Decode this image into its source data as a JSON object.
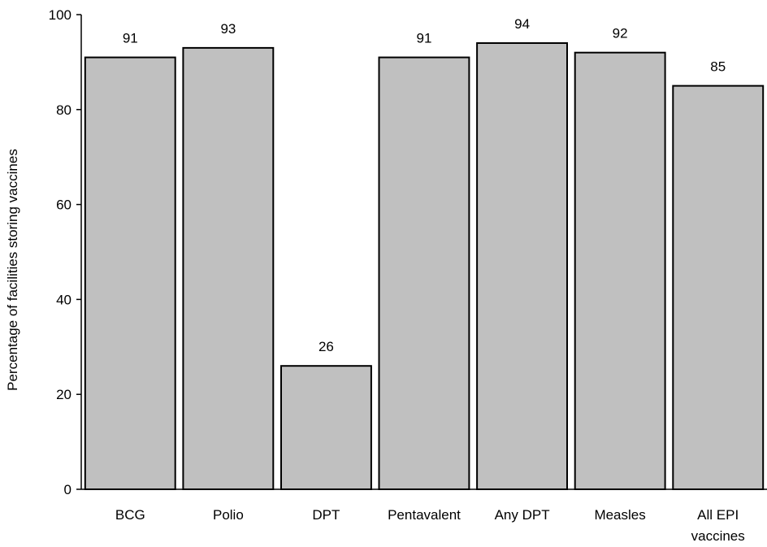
{
  "chart_data": {
    "type": "bar",
    "categories": [
      "BCG",
      "Polio",
      "DPT",
      "Pentavalent",
      "Any DPT",
      "Measles",
      "All EPI vaccines"
    ],
    "category_label_lines": [
      [
        "BCG"
      ],
      [
        "Polio"
      ],
      [
        "DPT"
      ],
      [
        "Pentavalent"
      ],
      [
        "Any DPT"
      ],
      [
        "Measles"
      ],
      [
        "All EPI",
        "vaccines"
      ]
    ],
    "values": [
      91,
      93,
      26,
      91,
      94,
      92,
      85
    ],
    "data_labels": [
      "91",
      "93",
      "26",
      "91",
      "94",
      "92",
      "85"
    ],
    "ylabel": "Percentage of facilities storing vaccines",
    "xlabel": "",
    "title": "",
    "ylim": [
      0,
      100
    ],
    "yticks": [
      0,
      20,
      40,
      60,
      80,
      100
    ],
    "grid": false,
    "legend": "none",
    "bar_fill": "#c0c0c0",
    "bar_stroke": "#000000"
  }
}
